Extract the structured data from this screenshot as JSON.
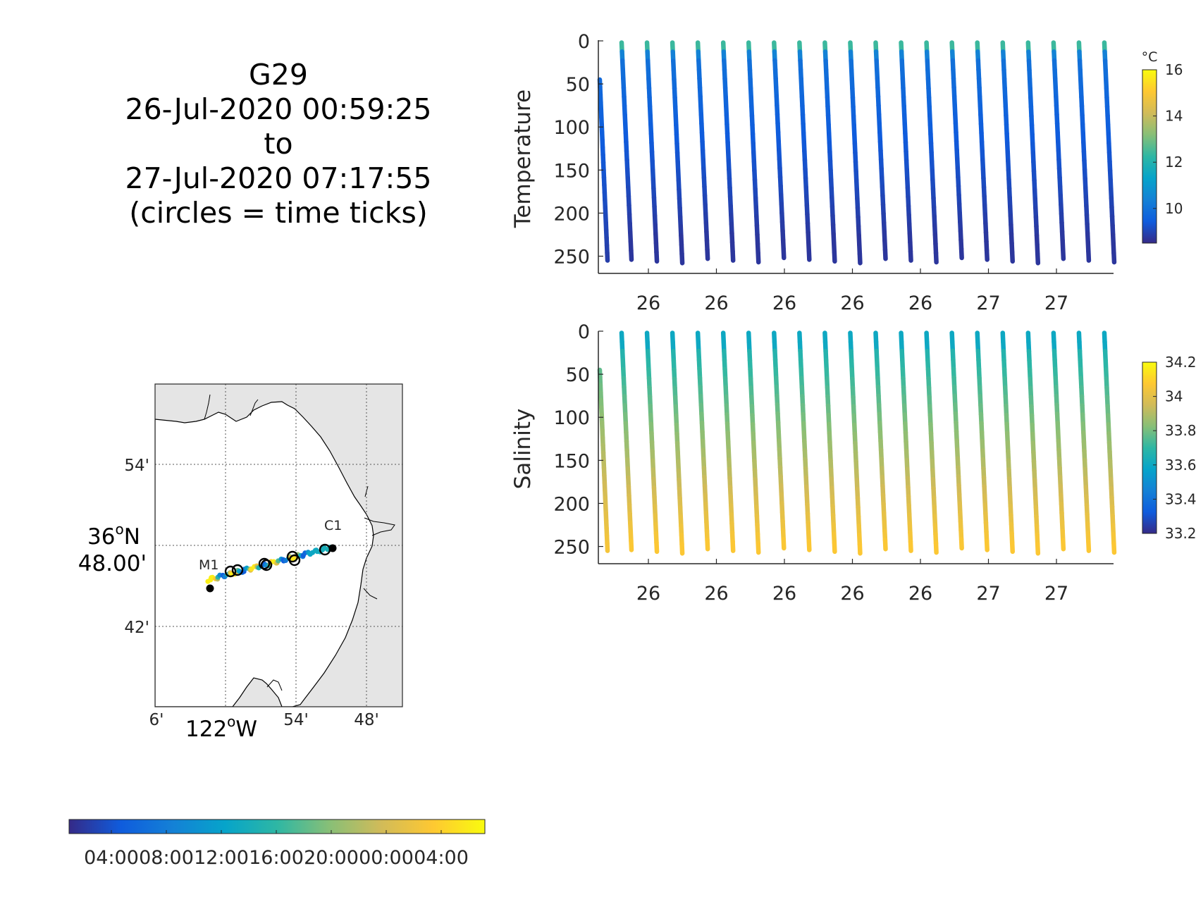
{
  "title": {
    "line1": "G29",
    "line2": "26-Jul-2020 00:59:25",
    "line3": "to",
    "line4": "27-Jul-2020 07:17:55",
    "line5": "(circles = time ticks)"
  },
  "chart_data": [
    {
      "type": "scatter",
      "name": "temperature-section",
      "ylabel": "Temperature",
      "yticks": [
        "0",
        "50",
        "100",
        "150",
        "200",
        "250"
      ],
      "yreversed": true,
      "ylim": [
        0,
        270
      ],
      "xticks": [
        "26",
        "26",
        "26",
        "26",
        "26",
        "27",
        "27"
      ],
      "colorbar": {
        "unit": "°C",
        "ticks": [
          "16",
          "14",
          "12",
          "10"
        ],
        "range": [
          8.5,
          16
        ]
      },
      "profile_count": 21,
      "max_depth": 255
    },
    {
      "type": "scatter",
      "name": "salinity-section",
      "ylabel": "Salinity",
      "yticks": [
        "0",
        "50",
        "100",
        "150",
        "200",
        "250"
      ],
      "yreversed": true,
      "ylim": [
        0,
        270
      ],
      "xticks": [
        "26",
        "26",
        "26",
        "26",
        "26",
        "27",
        "27"
      ],
      "colorbar": {
        "unit": "",
        "ticks": [
          "34.2",
          "34",
          "33.8",
          "33.6",
          "33.4",
          "33.2"
        ],
        "range": [
          33.2,
          34.2
        ]
      },
      "profile_count": 21,
      "max_depth": 255
    },
    {
      "type": "map",
      "name": "glider-track-map",
      "lat_ticks": [
        "54'",
        "36°N 48.00'",
        "42'"
      ],
      "lon_ticks": [
        "6'",
        "122°W",
        "54'",
        "48'"
      ],
      "labels": [
        "M1",
        "C1"
      ],
      "time_colorbar_ticks": [
        "04:00",
        "08:00",
        "12:00",
        "16:00",
        "20:00",
        "00:00",
        "04:00"
      ],
      "time_ticks_circles": 6
    }
  ],
  "map": {
    "lat_54": "54'",
    "lat_36": "36",
    "lat_36_sup": "o",
    "lat_36_hemi": "N",
    "lat_48": "48.00'",
    "lat_42": "42'",
    "lon_6": "6'",
    "lon_122": "122",
    "lon_122_sup": "o",
    "lon_122_hemi": "W",
    "lon_54": "54'",
    "lon_48": "48'",
    "label_m1": "M1",
    "label_c1": "C1"
  },
  "time_colorbar": {
    "ticks": [
      "04:00",
      "08:00",
      "12:00",
      "16:00",
      "20:00",
      "00:00",
      "04:00"
    ]
  },
  "colors": {
    "parula": [
      "#352a87",
      "#0f5cdd",
      "#1481d6",
      "#06a4ca",
      "#2eb7a4",
      "#87bf77",
      "#d1bb59",
      "#fec832",
      "#f9fb0e"
    ],
    "land": "#e5e5e5",
    "axis": "#262626"
  }
}
